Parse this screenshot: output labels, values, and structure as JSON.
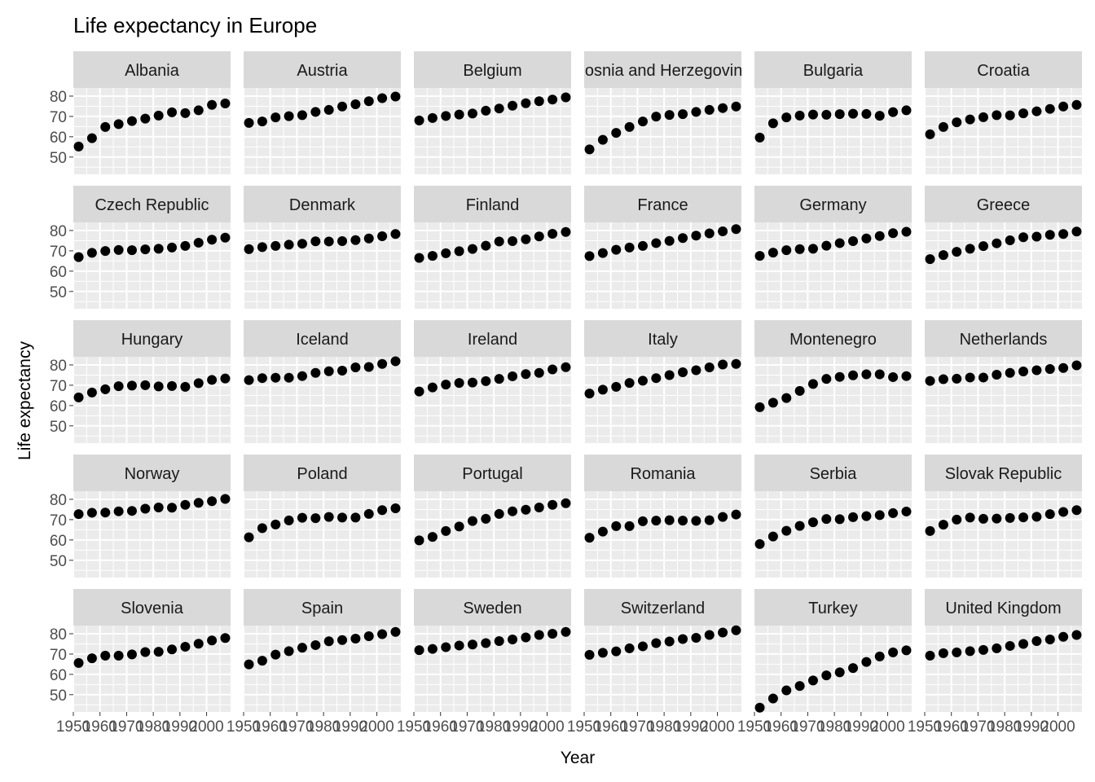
{
  "chart_data": {
    "type": "scatter",
    "title": "Life expectancy in Europe",
    "xlabel": "Year",
    "ylabel": "Life expectancy",
    "x": [
      1952,
      1957,
      1962,
      1967,
      1972,
      1977,
      1982,
      1987,
      1992,
      1997,
      2002,
      2007
    ],
    "xlim": [
      1950,
      2009
    ],
    "ylim": [
      41.5,
      84
    ],
    "xticks": [
      1950,
      1960,
      1970,
      1980,
      1990,
      2000
    ],
    "xtick_labels": [
      "1950",
      "1960",
      "1970",
      "1980",
      "1990",
      "2000"
    ],
    "yticks": [
      50,
      60,
      70,
      80
    ],
    "ytick_labels": [
      "50",
      "60",
      "70",
      "80"
    ],
    "grid": true,
    "legend": "none",
    "colors": {
      "panel_bg": "#ebebeb",
      "grid_major": "#ffffff",
      "strip_bg": "#d9d9d9",
      "point": "#000000",
      "tick_text": "#4d4d4d",
      "strip_text": "#1a1a1a"
    },
    "panels": [
      {
        "name": "Albania",
        "values": [
          55.2,
          59.3,
          64.8,
          66.2,
          67.7,
          68.9,
          70.4,
          72.0,
          71.6,
          73.0,
          75.7,
          76.4
        ]
      },
      {
        "name": "Austria",
        "values": [
          66.8,
          67.5,
          69.5,
          70.1,
          70.6,
          72.2,
          73.2,
          74.9,
          76.0,
          77.5,
          79.0,
          79.8
        ]
      },
      {
        "name": "Belgium",
        "values": [
          68.0,
          69.2,
          70.2,
          70.9,
          71.4,
          72.8,
          73.9,
          75.3,
          76.5,
          77.5,
          78.3,
          79.4
        ]
      },
      {
        "name": "Bosnia and Herzegovina",
        "values": [
          53.8,
          58.5,
          61.9,
          64.8,
          67.5,
          69.9,
          70.7,
          71.1,
          72.2,
          73.2,
          74.1,
          74.9
        ]
      },
      {
        "name": "Bulgaria",
        "values": [
          59.6,
          66.6,
          69.5,
          70.4,
          70.9,
          70.8,
          71.1,
          71.3,
          71.2,
          70.3,
          72.1,
          73.0
        ]
      },
      {
        "name": "Croatia",
        "values": [
          61.2,
          64.8,
          67.1,
          68.5,
          69.6,
          70.6,
          70.5,
          71.5,
          72.5,
          73.7,
          74.9,
          75.7
        ]
      },
      {
        "name": "Czech Republic",
        "values": [
          66.9,
          69.0,
          69.9,
          70.4,
          70.3,
          70.7,
          71.0,
          71.6,
          72.4,
          74.0,
          75.5,
          76.5
        ]
      },
      {
        "name": "Denmark",
        "values": [
          70.8,
          71.8,
          72.4,
          73.0,
          73.5,
          74.7,
          74.6,
          74.8,
          75.3,
          76.1,
          77.2,
          78.3
        ]
      },
      {
        "name": "Finland",
        "values": [
          66.5,
          67.5,
          68.8,
          69.8,
          70.9,
          72.5,
          74.6,
          74.8,
          75.7,
          77.1,
          78.4,
          79.3
        ]
      },
      {
        "name": "France",
        "values": [
          67.4,
          68.9,
          70.5,
          71.6,
          72.4,
          73.8,
          74.9,
          76.3,
          77.5,
          78.6,
          79.6,
          80.7
        ]
      },
      {
        "name": "Germany",
        "values": [
          67.5,
          69.1,
          70.3,
          70.8,
          71.0,
          72.5,
          73.8,
          74.8,
          76.1,
          77.3,
          78.7,
          79.4
        ]
      },
      {
        "name": "Greece",
        "values": [
          65.9,
          67.9,
          69.5,
          71.0,
          72.3,
          73.7,
          75.2,
          76.7,
          77.0,
          77.9,
          78.3,
          79.5
        ]
      },
      {
        "name": "Hungary",
        "values": [
          64.0,
          66.4,
          68.0,
          69.5,
          69.8,
          70.0,
          69.4,
          69.6,
          69.2,
          71.0,
          72.6,
          73.3
        ]
      },
      {
        "name": "Iceland",
        "values": [
          72.5,
          73.5,
          73.7,
          73.7,
          74.5,
          76.1,
          76.9,
          77.2,
          78.8,
          79.0,
          80.5,
          81.8
        ]
      },
      {
        "name": "Ireland",
        "values": [
          66.9,
          68.9,
          70.3,
          71.1,
          71.3,
          72.0,
          73.1,
          74.4,
          75.5,
          76.1,
          77.8,
          78.9
        ]
      },
      {
        "name": "Italy",
        "values": [
          65.9,
          67.8,
          69.2,
          71.1,
          72.2,
          73.5,
          75.0,
          76.4,
          77.4,
          78.8,
          80.2,
          80.5
        ]
      },
      {
        "name": "Montenegro",
        "values": [
          59.2,
          61.4,
          63.7,
          67.2,
          70.6,
          73.1,
          74.1,
          74.9,
          75.4,
          75.4,
          74.0,
          74.5
        ]
      },
      {
        "name": "Netherlands",
        "values": [
          72.1,
          72.99,
          73.2,
          73.8,
          73.8,
          75.2,
          76.1,
          76.8,
          77.4,
          78.0,
          78.5,
          79.8
        ]
      },
      {
        "name": "Norway",
        "values": [
          72.7,
          73.4,
          73.5,
          74.1,
          74.3,
          75.4,
          76.0,
          75.9,
          77.3,
          78.3,
          79.1,
          80.2
        ]
      },
      {
        "name": "Poland",
        "values": [
          61.3,
          65.8,
          67.6,
          69.6,
          70.9,
          70.7,
          71.3,
          71.0,
          71.0,
          72.8,
          74.7,
          75.6
        ]
      },
      {
        "name": "Portugal",
        "values": [
          59.8,
          61.5,
          64.4,
          66.6,
          69.3,
          70.4,
          72.8,
          74.1,
          74.9,
          75.97,
          77.3,
          78.1
        ]
      },
      {
        "name": "Romania",
        "values": [
          61.1,
          64.1,
          66.8,
          66.8,
          69.2,
          69.5,
          69.7,
          69.5,
          69.4,
          69.7,
          71.3,
          72.5
        ]
      },
      {
        "name": "Serbia",
        "values": [
          58.0,
          61.7,
          64.5,
          66.9,
          68.7,
          70.3,
          70.2,
          71.2,
          71.7,
          72.2,
          73.2,
          74.0
        ]
      },
      {
        "name": "Slovak Republic",
        "values": [
          64.4,
          67.5,
          70.0,
          71.0,
          70.4,
          70.5,
          70.8,
          71.1,
          71.4,
          72.7,
          73.8,
          74.7
        ]
      },
      {
        "name": "Slovenia",
        "values": [
          65.6,
          67.9,
          69.2,
          69.2,
          69.8,
          70.97,
          71.1,
          72.25,
          73.6,
          75.1,
          76.7,
          77.9
        ]
      },
      {
        "name": "Spain",
        "values": [
          64.9,
          66.7,
          69.7,
          71.4,
          73.1,
          74.4,
          76.3,
          76.9,
          77.6,
          78.8,
          79.8,
          80.9
        ]
      },
      {
        "name": "Sweden",
        "values": [
          71.9,
          72.5,
          73.4,
          74.2,
          74.7,
          75.4,
          76.4,
          77.2,
          78.2,
          79.4,
          80.0,
          80.9
        ]
      },
      {
        "name": "Switzerland",
        "values": [
          69.6,
          70.6,
          71.3,
          72.8,
          73.8,
          75.4,
          76.2,
          77.4,
          78.0,
          79.4,
          80.6,
          81.7
        ]
      },
      {
        "name": "Turkey",
        "values": [
          43.6,
          48.1,
          52.1,
          54.3,
          57.0,
          59.5,
          61.0,
          63.1,
          66.1,
          68.8,
          70.8,
          71.8
        ]
      },
      {
        "name": "United Kingdom",
        "values": [
          69.2,
          70.4,
          70.8,
          71.4,
          72.0,
          72.8,
          74.0,
          75.0,
          76.4,
          77.2,
          78.5,
          79.4
        ]
      }
    ]
  }
}
